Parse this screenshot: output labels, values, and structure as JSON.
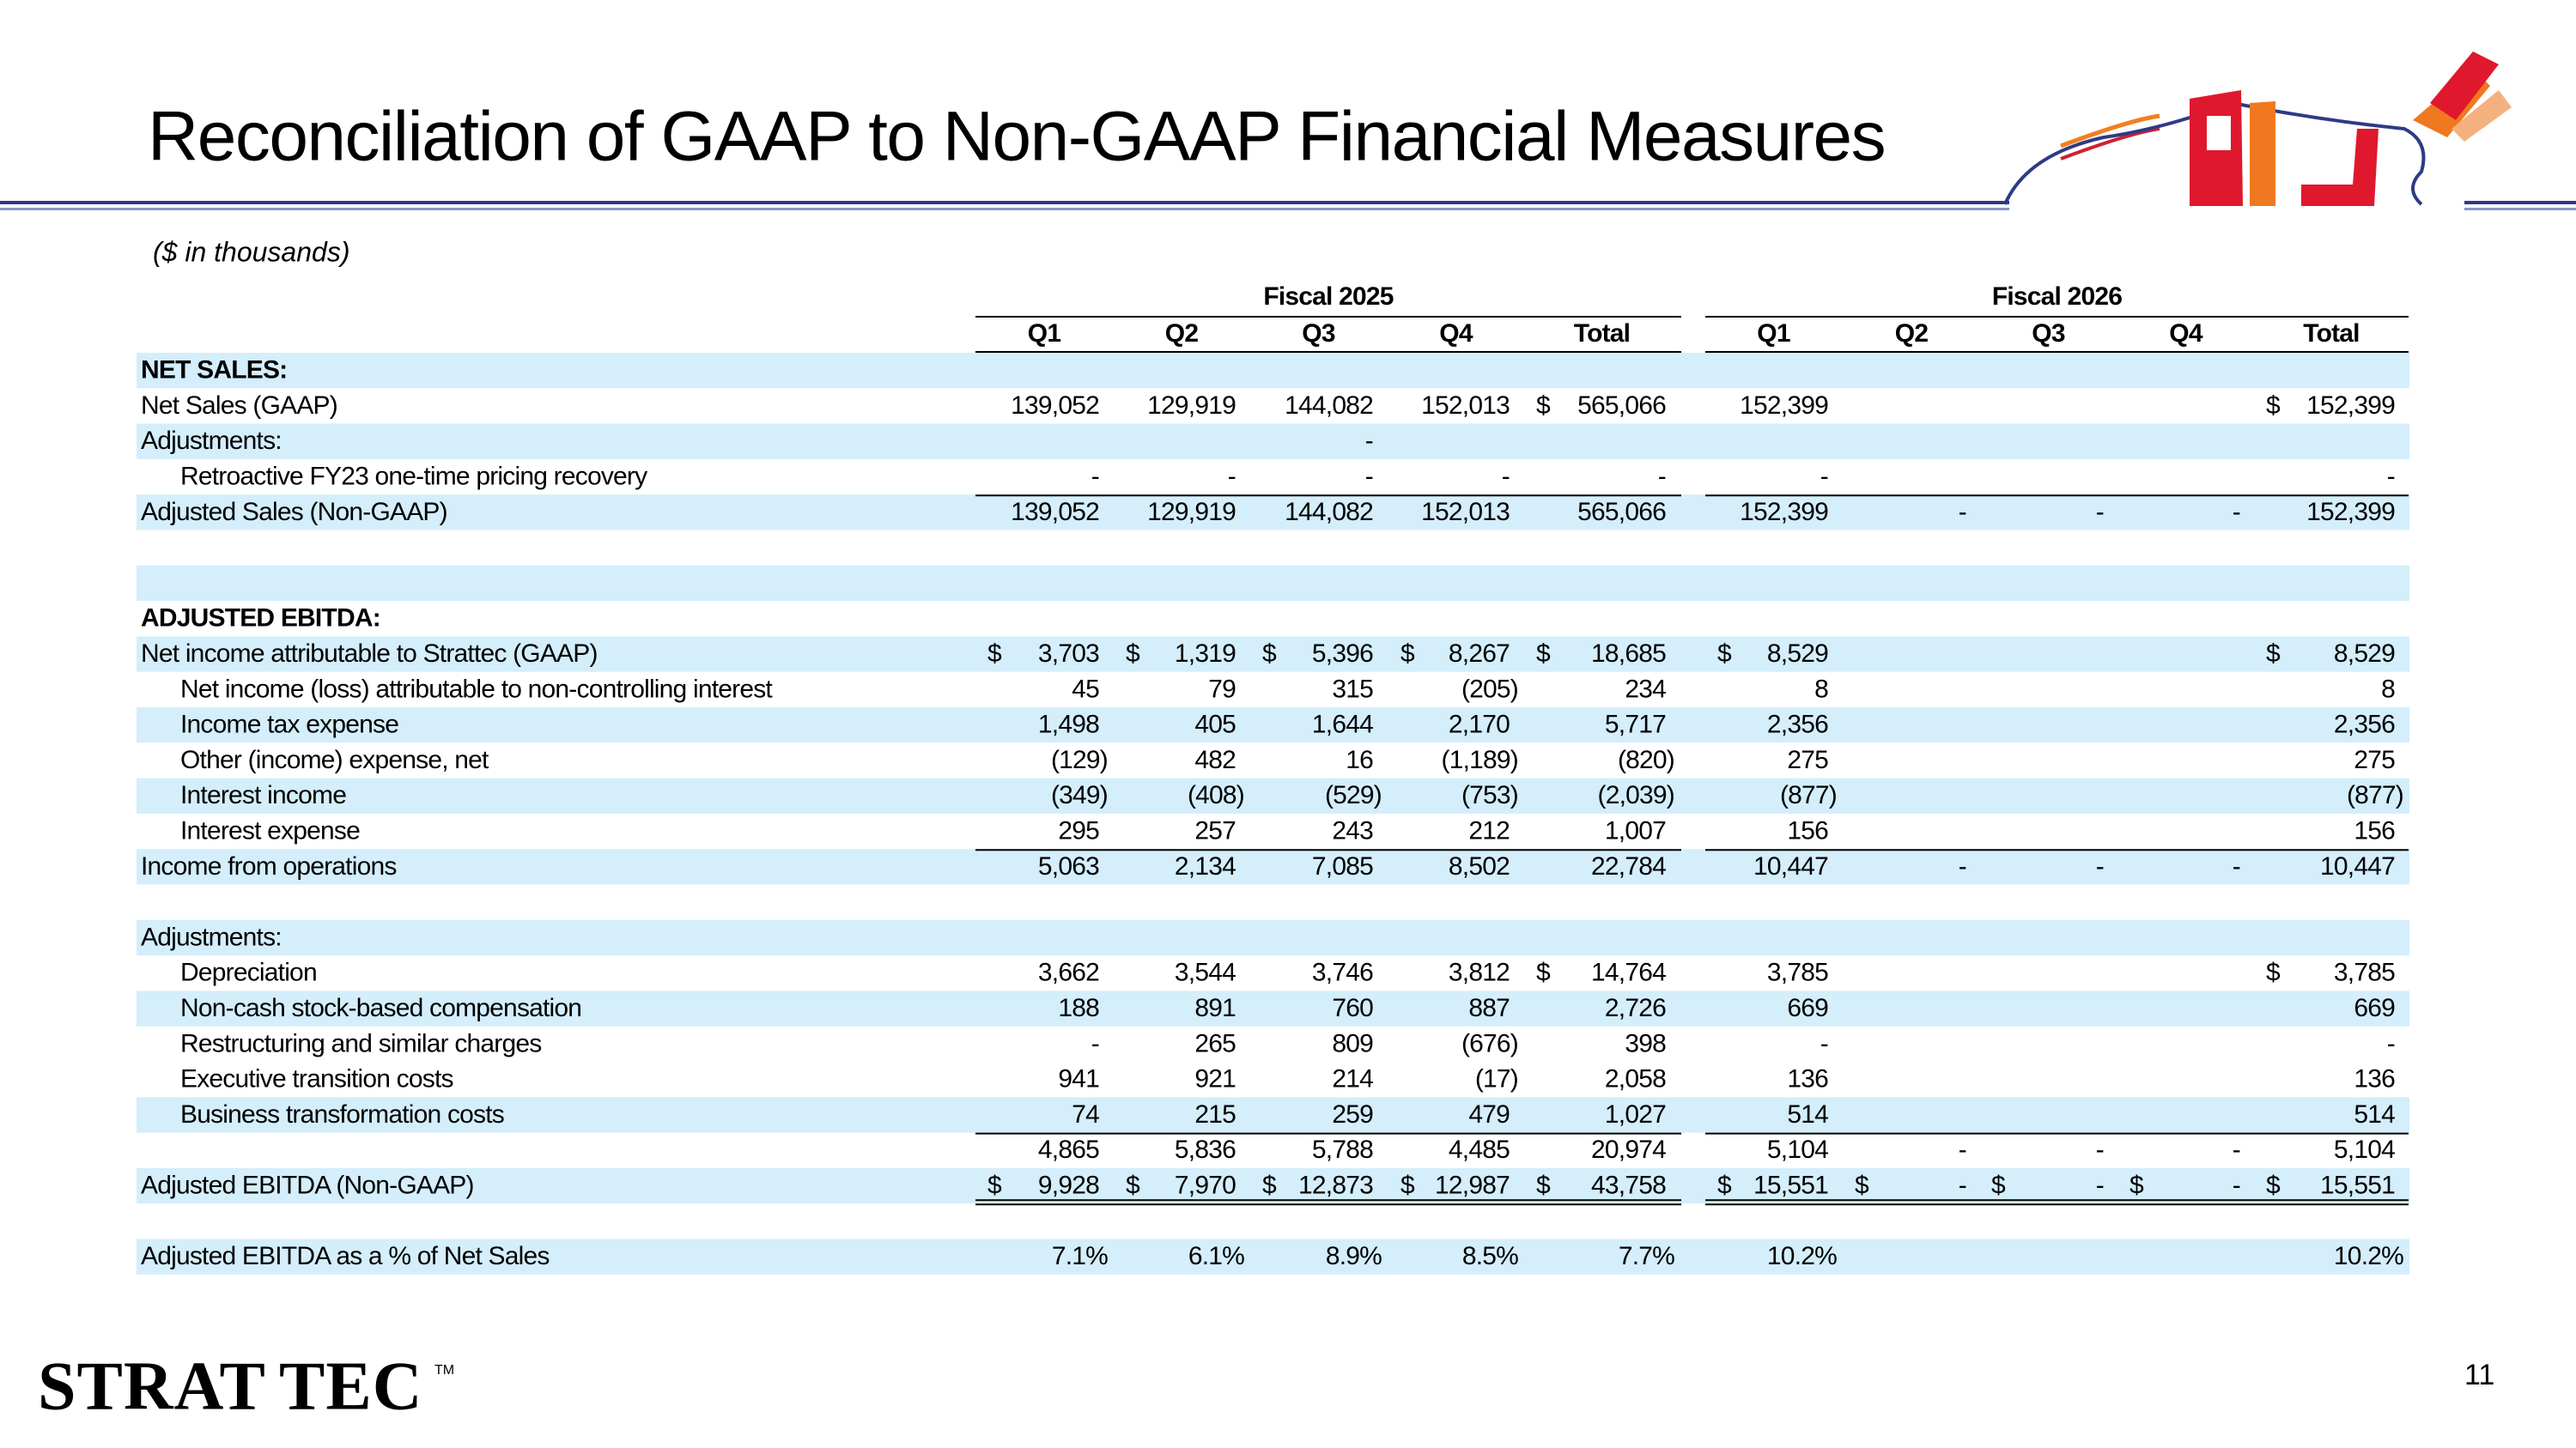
{
  "title": "Reconciliation of GAAP to Non-GAAP Financial Measures",
  "subtitle": "($ in thousands)",
  "table": {
    "groups": [
      "Fiscal 2025",
      "Fiscal 2026"
    ],
    "columns": [
      "Q1",
      "Q2",
      "Q3",
      "Q4",
      "Total",
      "Q1",
      "Q2",
      "Q3",
      "Q4",
      "Total"
    ],
    "rows": [
      {
        "label": "NET SALES:",
        "bold": true
      },
      {
        "label": "Net Sales (GAAP)",
        "cells": [
          "139,052",
          "129,919",
          "144,082",
          "152,013",
          {
            "sign": "$",
            "text": "565,066"
          },
          "152,399",
          null,
          null,
          null,
          {
            "sign": "$",
            "text": "152,399"
          }
        ]
      },
      {
        "label": "Adjustments:",
        "cells": [
          null,
          null,
          "-",
          null,
          null,
          null,
          null,
          null,
          null,
          null
        ]
      },
      {
        "label": "Retroactive FY23 one-time pricing recovery",
        "indent": true,
        "cells": [
          "-",
          "-",
          "-",
          "-",
          "-",
          "-",
          null,
          null,
          null,
          "-"
        ]
      },
      {
        "label": "Adjusted Sales (Non-GAAP)",
        "cells": [
          "139,052",
          "129,919",
          "144,082",
          "152,013",
          "565,066",
          "152,399",
          "-",
          "-",
          "-",
          "152,399"
        ]
      },
      null,
      null,
      {
        "label": "ADJUSTED EBITDA:",
        "bold": true
      },
      {
        "label": "Net income attributable to Strattec (GAAP)",
        "cells": [
          {
            "sign": "$",
            "text": "3,703"
          },
          {
            "sign": "$",
            "text": "1,319"
          },
          {
            "sign": "$",
            "text": "5,396"
          },
          {
            "sign": "$",
            "text": "8,267"
          },
          {
            "sign": "$",
            "text": "18,685"
          },
          {
            "sign": "$",
            "text": "8,529"
          },
          null,
          null,
          null,
          {
            "sign": "$",
            "text": "8,529"
          }
        ]
      },
      {
        "label": "Net income (loss) attributable to non-controlling interest",
        "indent": true,
        "cells": [
          "45",
          "79",
          "315",
          "(205)",
          "234",
          "8",
          null,
          null,
          null,
          "8"
        ]
      },
      {
        "label": "Income tax expense",
        "indent": true,
        "cells": [
          "1,498",
          "405",
          "1,644",
          "2,170",
          "5,717",
          "2,356",
          null,
          null,
          null,
          "2,356"
        ]
      },
      {
        "label": "Other (income) expense, net",
        "indent": true,
        "cells": [
          "(129)",
          "482",
          "16",
          "(1,189)",
          "(820)",
          "275",
          null,
          null,
          null,
          "275"
        ]
      },
      {
        "label": "Interest income",
        "indent": true,
        "cells": [
          "(349)",
          "(408)",
          "(529)",
          "(753)",
          "(2,039)",
          "(877)",
          null,
          null,
          null,
          "(877)"
        ]
      },
      {
        "label": "Interest expense",
        "indent": true,
        "cells": [
          "295",
          "257",
          "243",
          "212",
          "1,007",
          "156",
          null,
          null,
          null,
          "156"
        ]
      },
      {
        "label": "Income from operations",
        "cells": [
          "5,063",
          "2,134",
          "7,085",
          "8,502",
          "22,784",
          "10,447",
          "-",
          "-",
          "-",
          "10,447"
        ]
      },
      null,
      {
        "label": "Adjustments:"
      },
      {
        "label": "Depreciation",
        "indent": true,
        "cells": [
          "3,662",
          "3,544",
          "3,746",
          "3,812",
          {
            "sign": "$",
            "text": "14,764"
          },
          "3,785",
          null,
          null,
          null,
          {
            "sign": "$",
            "text": "3,785"
          }
        ]
      },
      {
        "label": "Non-cash stock-based compensation",
        "indent": true,
        "cells": [
          "188",
          "891",
          "760",
          "887",
          "2,726",
          "669",
          null,
          null,
          null,
          "669"
        ]
      },
      {
        "label": "Restructuring and similar charges",
        "indent": true,
        "cells": [
          "-",
          "265",
          "809",
          "(676)",
          "398",
          "-",
          null,
          null,
          null,
          "-"
        ]
      },
      {
        "label": "Executive transition costs",
        "indent": true,
        "cells": [
          "941",
          "921",
          "214",
          "(17)",
          "2,058",
          "136",
          null,
          null,
          null,
          "136"
        ]
      },
      {
        "label": "Business transformation costs",
        "indent": true,
        "cells": [
          "74",
          "215",
          "259",
          "479",
          "1,027",
          "514",
          null,
          null,
          null,
          "514"
        ]
      },
      {
        "cells": [
          "4,865",
          "5,836",
          "5,788",
          "4,485",
          "20,974",
          "5,104",
          "-",
          "-",
          "-",
          "5,104"
        ]
      },
      {
        "label": "Adjusted EBITDA (Non-GAAP)",
        "cells": [
          {
            "sign": "$",
            "text": "9,928"
          },
          {
            "sign": "$",
            "text": "7,970"
          },
          {
            "sign": "$",
            "text": "12,873"
          },
          {
            "sign": "$",
            "text": "12,987"
          },
          {
            "sign": "$",
            "text": "43,758"
          },
          {
            "sign": "$",
            "text": "15,551"
          },
          {
            "sign": "$",
            "text": "-"
          },
          {
            "sign": "$",
            "text": "-"
          },
          {
            "sign": "$",
            "text": "-"
          },
          {
            "sign": "$",
            "text": "15,551"
          }
        ]
      },
      null,
      {
        "label": "Adjusted EBITDA as a % of Net Sales",
        "cells": [
          "7.1%",
          "6.1%",
          "8.9%",
          "8.5%",
          "7.7%",
          "10.2%",
          null,
          null,
          null,
          "10.2%"
        ]
      }
    ]
  },
  "logo": {
    "left": "STRAT",
    "right": "TEC",
    "mark": "TM"
  },
  "page_number": "11"
}
